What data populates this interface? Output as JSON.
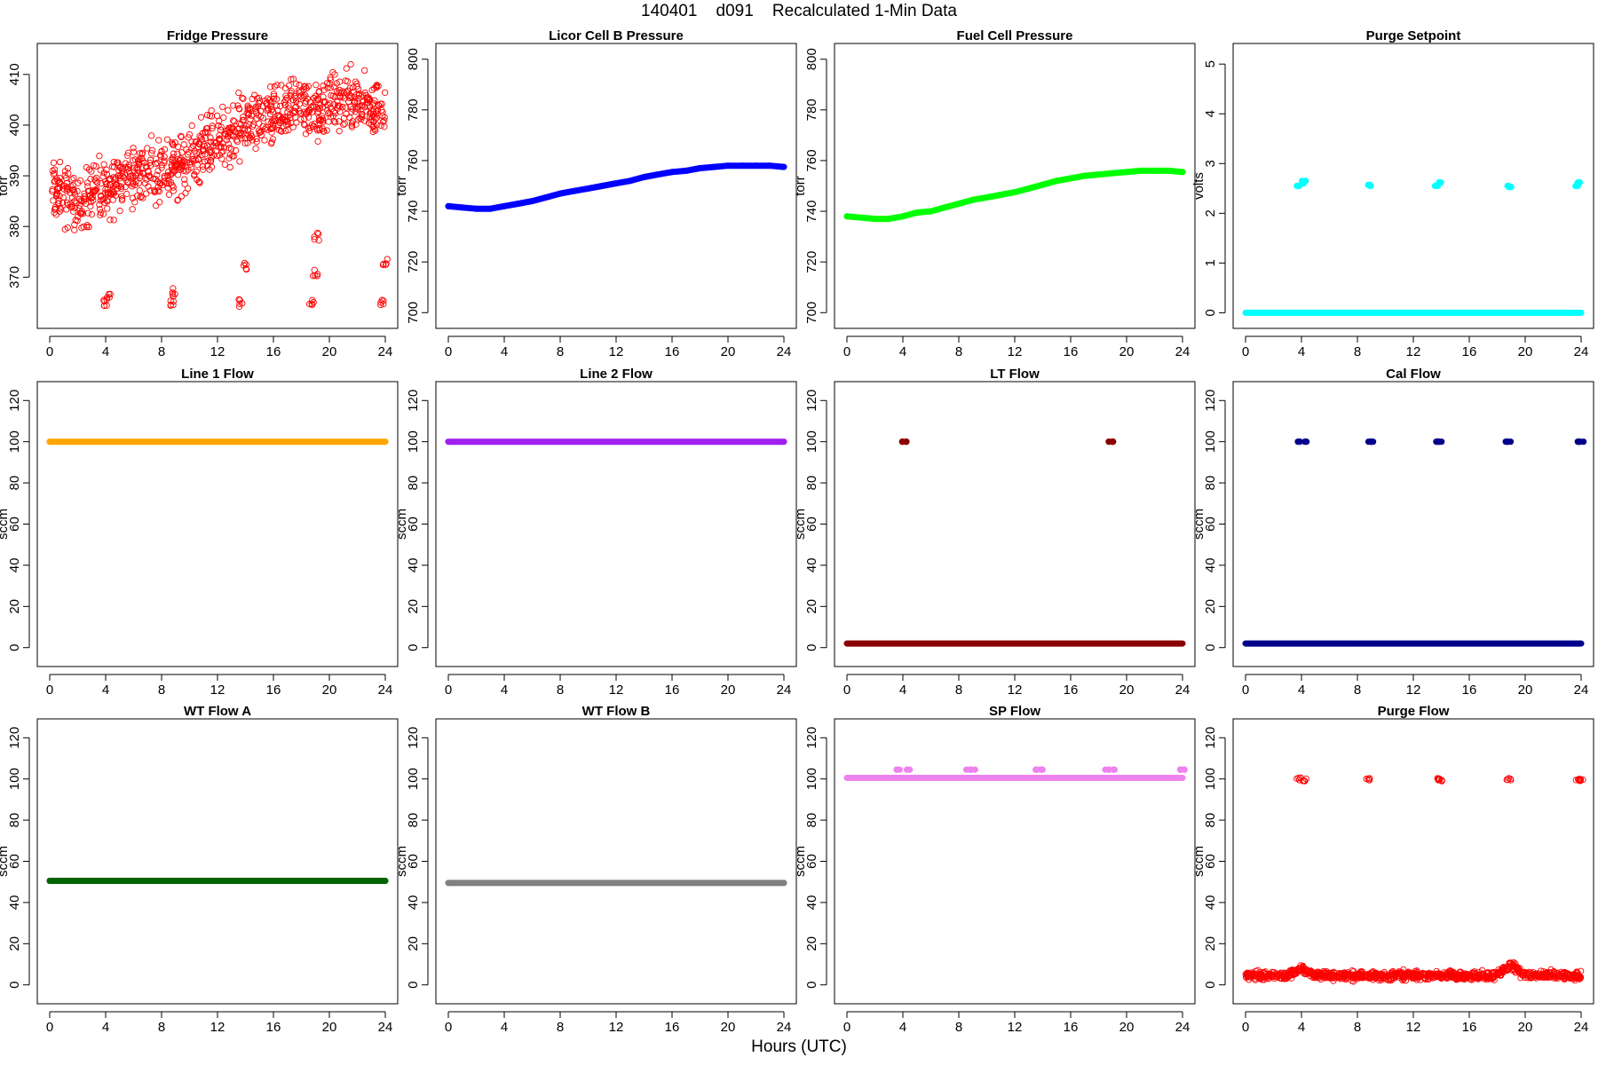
{
  "header": {
    "title": "140401    d091    Recalculated 1-Min Data"
  },
  "x_axis_label": "Hours (UTC)",
  "chart_data": [
    {
      "id": "fridge-pressure",
      "type": "scatter",
      "title": "Fridge Pressure",
      "ylabel": "torr",
      "marker": "open-circle",
      "color": "#ff0000",
      "xlim": [
        0,
        24
      ],
      "ylim": [
        362,
        414
      ],
      "xticks": [
        0,
        4,
        8,
        12,
        16,
        20,
        24
      ],
      "yticks": [
        370,
        380,
        390,
        400,
        410
      ],
      "series": [
        {
          "x": [
            0.1,
            1.0,
            2.0,
            3.0,
            4.1,
            5.0,
            6.0,
            7.0,
            8.1,
            9.0,
            10.0,
            11.0,
            12.0,
            13.0,
            14.1,
            15.0,
            16.0,
            17.0,
            18.0,
            19.1,
            20.0,
            21.0,
            22.0,
            23.0,
            24.0
          ],
          "y": [
            387,
            386,
            385,
            386,
            388,
            389,
            390,
            391,
            392,
            391,
            394,
            395,
            397,
            398,
            400,
            401,
            401,
            403,
            404,
            402,
            404,
            405,
            404,
            403,
            404
          ]
        },
        {
          "x": [
            3.9,
            4.2,
            8.8,
            8.9,
            13.7,
            13.9,
            18.7,
            19.0,
            19.1,
            23.7,
            24.0
          ],
          "y": [
            365,
            366,
            365,
            367,
            365,
            372,
            365,
            371,
            378,
            365,
            373
          ]
        }
      ]
    },
    {
      "id": "licor-cell-b-pressure",
      "type": "line",
      "title": "Licor Cell B Pressure",
      "ylabel": "torr",
      "color": "#0000ff",
      "xlim": [
        0,
        24
      ],
      "ylim": [
        698,
        802
      ],
      "xticks": [
        0,
        4,
        8,
        12,
        16,
        20,
        24
      ],
      "yticks": [
        700,
        720,
        740,
        760,
        780,
        800
      ],
      "x": [
        0,
        1,
        2,
        3,
        4,
        5,
        6,
        7,
        8,
        9,
        10,
        11,
        12,
        13,
        14,
        15,
        16,
        17,
        18,
        19,
        20,
        21,
        22,
        23,
        24
      ],
      "y": [
        742,
        741.5,
        741,
        741,
        742,
        743,
        744,
        745.5,
        747,
        748,
        749,
        750,
        751,
        752,
        753.5,
        754.5,
        755.5,
        756,
        757,
        757.5,
        758,
        758,
        758,
        758,
        757.5
      ]
    },
    {
      "id": "fuel-cell-pressure",
      "type": "line",
      "title": "Fuel Cell Pressure",
      "ylabel": "torr",
      "color": "#00ff00",
      "xlim": [
        0,
        24
      ],
      "ylim": [
        698,
        802
      ],
      "xticks": [
        0,
        4,
        8,
        12,
        16,
        20,
        24
      ],
      "yticks": [
        700,
        720,
        740,
        760,
        780,
        800
      ],
      "x": [
        0,
        1,
        2,
        3,
        4,
        5,
        6,
        7,
        8,
        9,
        10,
        11,
        12,
        13,
        14,
        15,
        16,
        17,
        18,
        19,
        20,
        21,
        22,
        23,
        24
      ],
      "y": [
        738,
        737.5,
        737,
        737,
        738,
        739.5,
        740,
        741.5,
        743,
        744.5,
        745.5,
        746.5,
        747.5,
        749,
        750.5,
        752,
        753,
        754,
        754.5,
        755,
        755.5,
        756,
        756,
        756,
        755.5
      ]
    },
    {
      "id": "purge-setpoint",
      "type": "scatter",
      "title": "Purge Setpoint",
      "ylabel": "volts",
      "color": "#00ffff",
      "xlim": [
        0,
        24
      ],
      "ylim": [
        -0.1,
        5.2
      ],
      "xticks": [
        0,
        4,
        8,
        12,
        16,
        20,
        24
      ],
      "yticks": [
        0,
        1,
        2,
        3,
        4,
        5
      ],
      "series": [
        {
          "x": [
            0,
            24
          ],
          "y": [
            0,
            0
          ]
        },
        {
          "x": [
            3.8,
            4.0,
            4.2,
            8.8,
            8.9,
            13.7,
            13.9,
            18.7,
            18.9,
            23.7,
            23.9
          ],
          "y": [
            2.55,
            2.6,
            2.65,
            2.57,
            2.55,
            2.55,
            2.62,
            2.55,
            2.53,
            2.55,
            2.62
          ]
        }
      ]
    },
    {
      "id": "line-1-flow",
      "type": "line",
      "title": "Line 1 Flow",
      "ylabel": "sccm",
      "color": "#ffa500",
      "xlim": [
        0,
        24
      ],
      "ylim": [
        -4,
        124
      ],
      "xticks": [
        0,
        4,
        8,
        12,
        16,
        20,
        24
      ],
      "yticks": [
        0,
        20,
        40,
        60,
        80,
        100,
        120
      ],
      "x": [
        0,
        24
      ],
      "y": [
        100,
        100
      ]
    },
    {
      "id": "line-2-flow",
      "type": "line",
      "title": "Line 2 Flow",
      "ylabel": "sccm",
      "color": "#a020f0",
      "xlim": [
        0,
        24
      ],
      "ylim": [
        -4,
        124
      ],
      "xticks": [
        0,
        4,
        8,
        12,
        16,
        20,
        24
      ],
      "yticks": [
        0,
        20,
        40,
        60,
        80,
        100,
        120
      ],
      "x": [
        0,
        24
      ],
      "y": [
        100,
        100
      ]
    },
    {
      "id": "lt-flow",
      "type": "scatter",
      "title": "LT Flow",
      "ylabel": "sccm",
      "color": "#8b0000",
      "xlim": [
        0,
        24
      ],
      "ylim": [
        -4,
        124
      ],
      "xticks": [
        0,
        4,
        8,
        12,
        16,
        20,
        24
      ],
      "yticks": [
        0,
        20,
        40,
        60,
        80,
        100,
        120
      ],
      "series": [
        {
          "x": [
            0,
            24
          ],
          "y": [
            2,
            2
          ]
        },
        {
          "x": [
            3.9,
            4.1,
            18.9,
            19.1
          ],
          "y": [
            100,
            100,
            100,
            100
          ]
        }
      ]
    },
    {
      "id": "cal-flow",
      "type": "scatter",
      "title": "Cal Flow",
      "ylabel": "sccm",
      "color": "#00008b",
      "xlim": [
        0,
        24
      ],
      "ylim": [
        -4,
        124
      ],
      "xticks": [
        0,
        4,
        8,
        12,
        16,
        20,
        24
      ],
      "yticks": [
        0,
        20,
        40,
        60,
        80,
        100,
        120
      ],
      "series": [
        {
          "x": [
            0,
            24
          ],
          "y": [
            2,
            2
          ]
        },
        {
          "x": [
            3.8,
            4.2,
            8.8,
            9.0,
            13.7,
            14.0,
            18.7,
            18.9,
            23.8,
            24.0
          ],
          "y": [
            100,
            100,
            100,
            100,
            100,
            100,
            100,
            100,
            100,
            100
          ]
        }
      ]
    },
    {
      "id": "wt-flow-a",
      "type": "line",
      "title": "WT Flow A",
      "ylabel": "sccm",
      "color": "#006400",
      "xlim": [
        0,
        24
      ],
      "ylim": [
        -4,
        124
      ],
      "xticks": [
        0,
        4,
        8,
        12,
        16,
        20,
        24
      ],
      "yticks": [
        0,
        20,
        40,
        60,
        80,
        100,
        120
      ],
      "x": [
        0,
        24
      ],
      "y": [
        50.5,
        50.5
      ]
    },
    {
      "id": "wt-flow-b",
      "type": "line",
      "title": "WT Flow B",
      "ylabel": "sccm",
      "color": "#808080",
      "xlim": [
        0,
        24
      ],
      "ylim": [
        -4,
        124
      ],
      "xticks": [
        0,
        4,
        8,
        12,
        16,
        20,
        24
      ],
      "yticks": [
        0,
        20,
        40,
        60,
        80,
        100,
        120
      ],
      "x": [
        0,
        24
      ],
      "y": [
        49.5,
        49.5
      ]
    },
    {
      "id": "sp-flow",
      "type": "scatter",
      "title": "SP Flow",
      "ylabel": "sccm",
      "color": "#ee82ee",
      "xlim": [
        0,
        24
      ],
      "ylim": [
        -4,
        124
      ],
      "xticks": [
        0,
        4,
        8,
        12,
        16,
        20,
        24
      ],
      "yticks": [
        0,
        20,
        40,
        60,
        80,
        100,
        120
      ],
      "series": [
        {
          "x": [
            0,
            24
          ],
          "y": [
            100.5,
            100.5
          ]
        },
        {
          "x": [
            3.7,
            4.4,
            8.7,
            9.0,
            13.6,
            14.0,
            18.6,
            19.0,
            23.8,
            24.0
          ],
          "y": [
            104.5,
            104.5,
            104.5,
            104.5,
            104.5,
            104.5,
            104.5,
            104.5,
            104.5,
            104.5
          ]
        }
      ]
    },
    {
      "id": "purge-flow",
      "type": "scatter",
      "title": "Purge Flow",
      "ylabel": "sccm",
      "marker": "open-circle",
      "color": "#ff0000",
      "xlim": [
        0,
        24
      ],
      "ylim": [
        -4,
        124
      ],
      "xticks": [
        0,
        4,
        8,
        12,
        16,
        20,
        24
      ],
      "yticks": [
        0,
        20,
        40,
        60,
        80,
        100,
        120
      ],
      "series": [
        {
          "x": [
            0,
            1,
            2,
            3,
            4,
            5,
            6,
            7,
            8,
            9,
            10,
            11,
            12,
            13,
            14,
            15,
            16,
            17,
            18,
            19,
            20,
            21,
            22,
            23,
            24
          ],
          "y": [
            4.5,
            4.5,
            4.6,
            4.4,
            8,
            4.5,
            4.6,
            4.5,
            4.4,
            4.6,
            4.5,
            4.5,
            4.6,
            4.4,
            4.5,
            4.6,
            4.5,
            4.4,
            4.6,
            10,
            4.5,
            4.6,
            4.5,
            4.4,
            4.5
          ]
        },
        {
          "x": [
            3.8,
            4.2,
            8.8,
            13.7,
            13.9,
            18.8,
            23.8,
            24.0
          ],
          "y": [
            100,
            99.5,
            100,
            100,
            99.5,
            100,
            100,
            99.5
          ]
        }
      ]
    }
  ]
}
